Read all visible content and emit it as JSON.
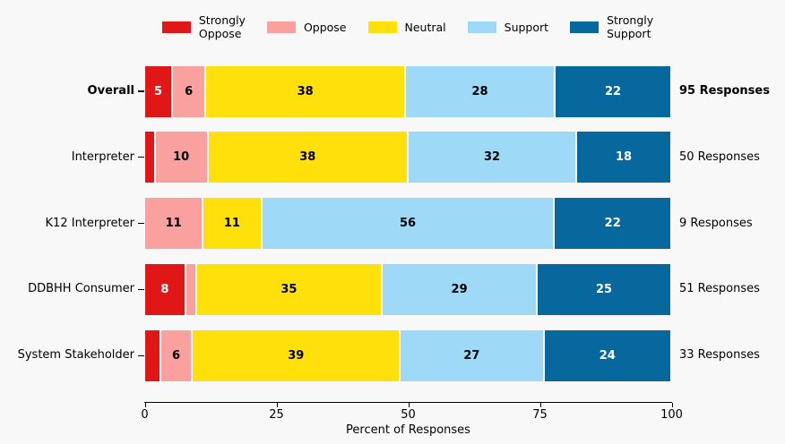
{
  "chart_data": {
    "type": "bar",
    "orientation": "horizontal",
    "stacked": true,
    "title": "",
    "xlabel": "Percent of Responses",
    "xlim": [
      0,
      100
    ],
    "xticks": [
      0,
      25,
      50,
      75,
      100
    ],
    "grid": false,
    "legend_position": "top-center",
    "background_color": "#f8f8f8",
    "categories": [
      "Overall",
      "Interpreter",
      "K12 Interpreter",
      "DDBHH Consumer",
      "System Stakeholder"
    ],
    "category_emphasis": [
      true,
      false,
      false,
      false,
      false
    ],
    "row_totals": [
      "95 Responses",
      "50 Responses",
      "9 Responses",
      "51 Responses",
      "33 Responses"
    ],
    "row_total_emphasis": [
      true,
      false,
      false,
      false,
      false
    ],
    "series": [
      {
        "name": "Strongly Oppose",
        "legend_label": "Strongly\nOppose",
        "color": "#e01716",
        "value_text_color": "#ffffff",
        "values": [
          5.3,
          2,
          0,
          7.8,
          3
        ],
        "value_labels": [
          "5",
          "",
          "",
          "8",
          ""
        ]
      },
      {
        "name": "Oppose",
        "legend_label": "Oppose",
        "color": "#faa09f",
        "value_text_color": "#000000",
        "values": [
          6.3,
          10,
          11.1,
          2,
          6.1
        ],
        "value_labels": [
          "6",
          "10",
          "11",
          "",
          "6"
        ]
      },
      {
        "name": "Neutral",
        "legend_label": "Neutral",
        "color": "#ffe00a",
        "value_text_color": "#000000",
        "values": [
          37.9,
          38,
          11.1,
          35.3,
          39.4
        ],
        "value_labels": [
          "38",
          "38",
          "11",
          "35",
          "39"
        ]
      },
      {
        "name": "Support",
        "legend_label": "Support",
        "color": "#9fd9f8",
        "value_text_color": "#000000",
        "values": [
          28.4,
          32,
          55.6,
          29.4,
          27.3
        ],
        "value_labels": [
          "28",
          "32",
          "56",
          "29",
          "27"
        ]
      },
      {
        "name": "Strongly Support",
        "legend_label": "Strongly\nSupport",
        "color": "#07689d",
        "value_text_color": "#ffffff",
        "values": [
          22.1,
          18,
          22.2,
          25.5,
          24.2
        ],
        "value_labels": [
          "22",
          "18",
          "22",
          "25",
          "24"
        ]
      }
    ]
  }
}
